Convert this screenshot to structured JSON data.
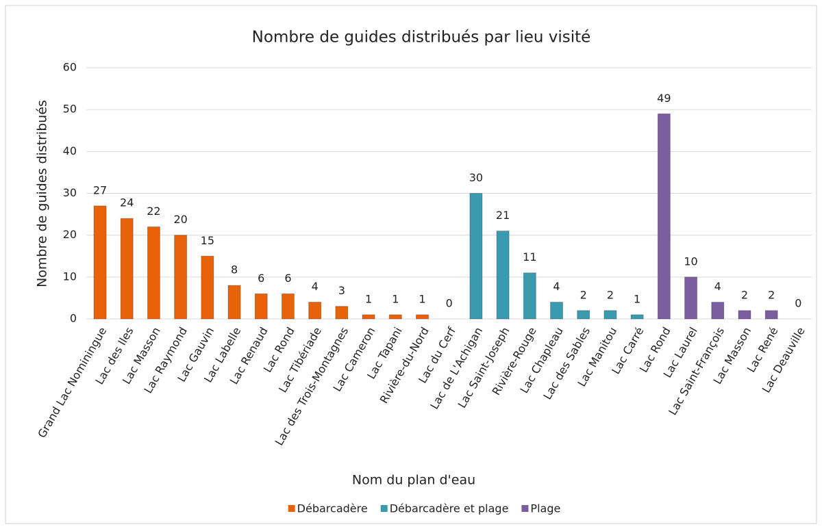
{
  "chart_data": {
    "type": "bar",
    "title": "Nombre de guides distribués par lieu visité",
    "x_label": "Nom du plan d'eau",
    "y_label": "Nombre de guides distribués",
    "categories": [
      "Grand Lac Nominingue",
      "Lac des Iles",
      "Lac Masson",
      "Lac Raymond",
      "Lac Gauvin",
      "Lac Labelle",
      "Lac Renaud",
      "Lac Rond",
      "Lac Tibériade",
      "Lac des Trois-Montagnes",
      "Lac Cameron",
      "Lac Tapani",
      "Rivière-du-Nord",
      "Lac du Cerf",
      "Lac de L'Achigan",
      "Lac Saint-Joseph",
      "Rivière-Rouge",
      "Lac Chapleau",
      "Lac des Sables",
      "Lac Manitou",
      "Lac Carré",
      "Lac Rond",
      "Lac Laurel",
      "Lac Saint-François",
      "Lac Masson",
      "Lac René",
      "Lac Deauville"
    ],
    "series": [
      {
        "name": "Débarcadère",
        "color": "#e8620a",
        "values": [
          27,
          24,
          22,
          20,
          15,
          8,
          6,
          6,
          4,
          3,
          1,
          1,
          1,
          0,
          null,
          null,
          null,
          null,
          null,
          null,
          null,
          null,
          null,
          null,
          null,
          null,
          null
        ]
      },
      {
        "name": "Débarcadère et plage",
        "color": "#3a9bb0",
        "values": [
          null,
          null,
          null,
          null,
          null,
          null,
          null,
          null,
          null,
          null,
          null,
          null,
          null,
          null,
          30,
          21,
          11,
          4,
          2,
          2,
          1,
          null,
          null,
          null,
          null,
          null,
          null
        ]
      },
      {
        "name": "Plage",
        "color": "#7a5ea0",
        "values": [
          null,
          null,
          null,
          null,
          null,
          null,
          null,
          null,
          null,
          null,
          null,
          null,
          null,
          null,
          null,
          null,
          null,
          null,
          null,
          null,
          null,
          49,
          10,
          4,
          2,
          2,
          0
        ]
      }
    ],
    "ylim": [
      0,
      60
    ],
    "yticks": [
      0,
      10,
      20,
      30,
      40,
      50,
      60
    ],
    "grid": true,
    "legend": "bottom"
  }
}
